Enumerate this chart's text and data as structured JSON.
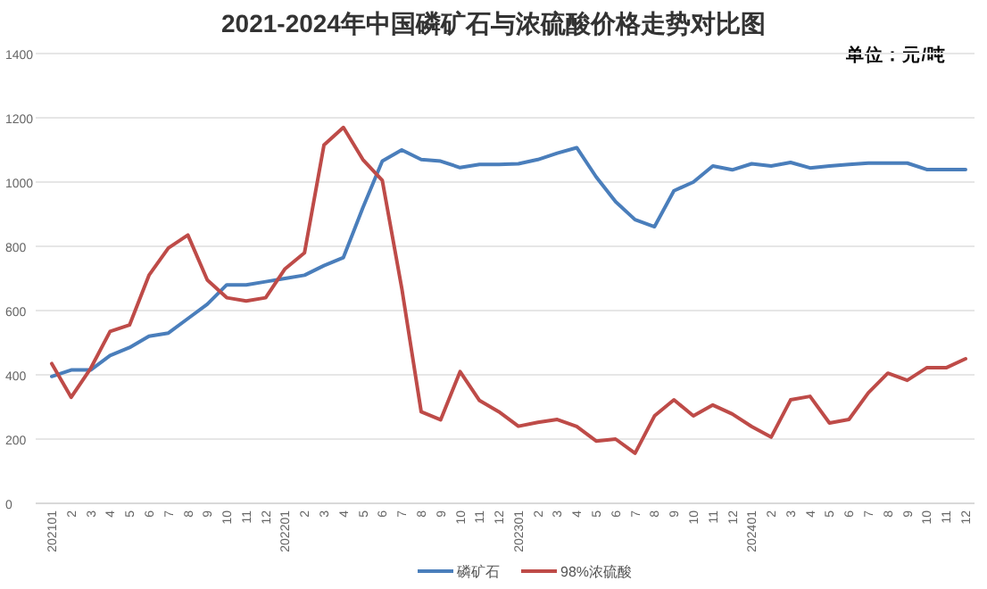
{
  "chart_data": {
    "type": "line",
    "title": "2021-2024年中国磷矿石与浓硫酸价格走势对比图",
    "annotations": [
      "单位：元/吨"
    ],
    "categories": [
      "202101",
      "2",
      "3",
      "4",
      "5",
      "6",
      "7",
      "8",
      "9",
      "10",
      "11",
      "12",
      "202201",
      "2",
      "3",
      "4",
      "5",
      "6",
      "7",
      "8",
      "9",
      "10",
      "11",
      "12",
      "202301",
      "2",
      "3",
      "4",
      "5",
      "6",
      "7",
      "8",
      "9",
      "10",
      "11",
      "12",
      "202401",
      "2",
      "3",
      "4",
      "5",
      "6",
      "7",
      "8",
      "9",
      "10",
      "11",
      "12"
    ],
    "series": [
      {
        "name": "磷矿石",
        "color": "#4a7ebb",
        "values": [
          395,
          415,
          415,
          460,
          485,
          520,
          530,
          575,
          620,
          680,
          680,
          690,
          700,
          710,
          740,
          765,
          920,
          1065,
          1100,
          1070,
          1065,
          1045,
          1055,
          1055,
          1057,
          1070,
          1090,
          1107,
          1016,
          939,
          883,
          861,
          973,
          1000,
          1050,
          1038,
          1057,
          1050,
          1061,
          1044,
          1050,
          1055,
          1059,
          1059,
          1059,
          1039,
          1039,
          1039
        ]
      },
      {
        "name": "98%浓硫酸",
        "color": "#be4b48",
        "values": [
          435,
          330,
          420,
          535,
          555,
          710,
          795,
          835,
          695,
          640,
          630,
          640,
          730,
          780,
          1115,
          1170,
          1070,
          1005,
          670,
          285,
          260,
          410,
          320,
          285,
          240,
          252,
          261,
          239,
          194,
          200,
          156,
          272,
          322,
          272,
          306,
          278,
          239,
          206,
          322,
          333,
          250,
          261,
          344,
          405,
          383,
          422,
          422,
          450
        ]
      }
    ],
    "ylim": [
      0,
      1400
    ],
    "yticks": [
      0,
      200,
      400,
      600,
      800,
      1000,
      1200,
      1400
    ],
    "grid": "y",
    "legend": "bottom",
    "marker": "none",
    "line_style": "solid"
  }
}
